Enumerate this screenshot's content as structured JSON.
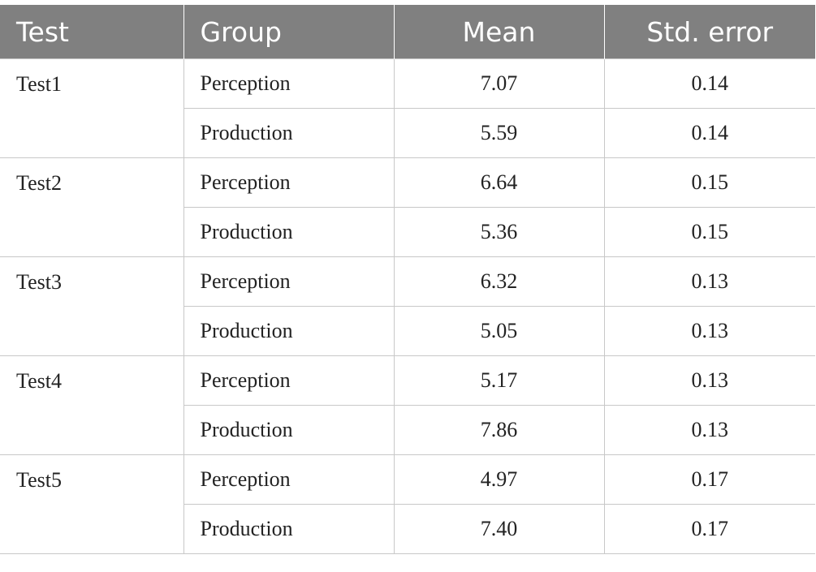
{
  "headers": [
    "Test",
    "Group",
    "Mean",
    "Std. error"
  ],
  "rows": [
    {
      "test": "Test1",
      "groups": [
        {
          "group": "Perception",
          "mean": "7.07",
          "se": "0.14"
        },
        {
          "group": "Production",
          "mean": "5.59",
          "se": "0.14"
        }
      ]
    },
    {
      "test": "Test2",
      "groups": [
        {
          "group": "Perception",
          "mean": "6.64",
          "se": "0.15"
        },
        {
          "group": "Production",
          "mean": "5.36",
          "se": "0.15"
        }
      ]
    },
    {
      "test": "Test3",
      "groups": [
        {
          "group": "Perception",
          "mean": "6.32",
          "se": "0.13"
        },
        {
          "group": "Production",
          "mean": "5.05",
          "se": "0.13"
        }
      ]
    },
    {
      "test": "Test4",
      "groups": [
        {
          "group": "Perception",
          "mean": "5.17",
          "se": "0.13"
        },
        {
          "group": "Production",
          "mean": "7.86",
          "se": "0.13"
        }
      ]
    },
    {
      "test": "Test5",
      "groups": [
        {
          "group": "Perception",
          "mean": "4.97",
          "se": "0.17"
        },
        {
          "group": "Production",
          "mean": "7.40",
          "se": "0.17"
        }
      ]
    }
  ]
}
